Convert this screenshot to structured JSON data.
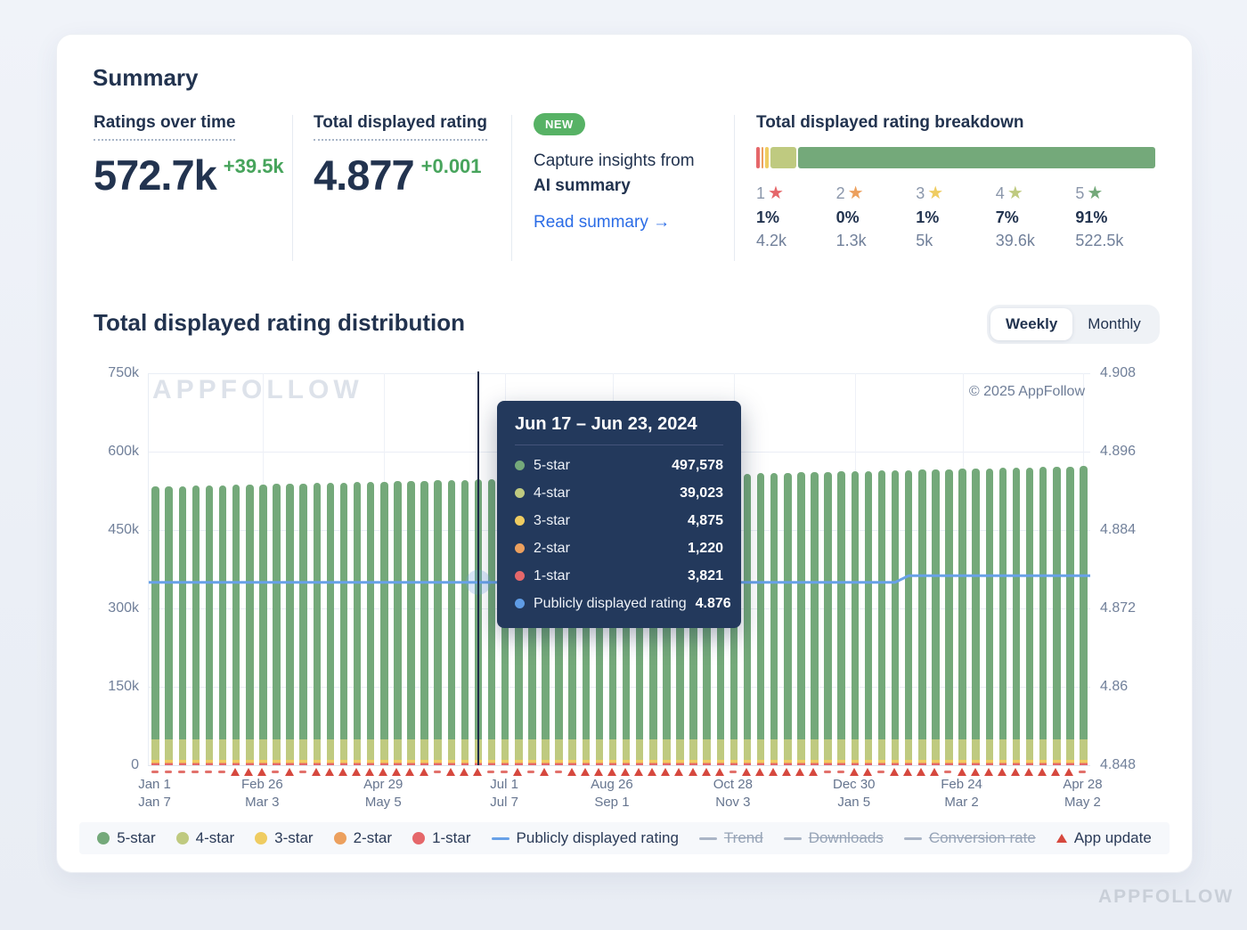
{
  "palette": {
    "five": "#74a97a",
    "four": "#bfca80",
    "three": "#efcc61",
    "two": "#eca05e",
    "one": "#e5676a",
    "line_blue": "#68a1e8",
    "update_red": "#d6483e",
    "disabled_gray": "#9aa7b9",
    "accent_green": "#47a45c",
    "badge_green": "#57b265",
    "link_blue": "#2b6ce6",
    "tooltip_bg": "#23395c",
    "navy": "#22334f"
  },
  "summary": {
    "title": "Summary",
    "stats": [
      {
        "label": "Ratings over time",
        "value": "572.7k",
        "delta": "+39.5k"
      },
      {
        "label": "Total displayed rating",
        "value": "4.877",
        "delta": "+0.001"
      }
    ],
    "ai": {
      "badge": "NEW",
      "line1": "Capture insights from",
      "line2": "AI summary",
      "link": "Read summary →"
    }
  },
  "breakdown": {
    "title": "Total displayed rating breakdown",
    "items": [
      {
        "num": "1",
        "star": "★",
        "color": "#e5676a",
        "pct": "1%",
        "count": "4.2k",
        "bar_pct": 0.9
      },
      {
        "num": "2",
        "star": "★",
        "color": "#eca05e",
        "pct": "0%",
        "count": "1.3k",
        "bar_pct": 0.5
      },
      {
        "num": "3",
        "star": "★",
        "color": "#efcc61",
        "pct": "1%",
        "count": "5k",
        "bar_pct": 0.9
      },
      {
        "num": "4",
        "star": "★",
        "color": "#bfca80",
        "pct": "7%",
        "count": "39.6k",
        "bar_pct": 6.4
      },
      {
        "num": "5",
        "star": "★",
        "color": "#74a97a",
        "pct": "91%",
        "count": "522.5k",
        "bar_pct": 91.3
      }
    ]
  },
  "distribution": {
    "title": "Total displayed rating distribution",
    "toggle": {
      "weekly": "Weekly",
      "monthly": "Monthly",
      "active": "Weekly"
    }
  },
  "chart_data": {
    "type": "bar",
    "title": "Total displayed rating distribution",
    "watermark": "APPFOLLOW",
    "copyright": "© 2025 AppFollow",
    "left_axis": {
      "labels": [
        "750k",
        "600k",
        "450k",
        "300k",
        "150k",
        "0"
      ],
      "max_k": 750
    },
    "right_axis": {
      "labels": [
        "4.908",
        "4.896",
        "4.884",
        "4.872",
        "4.86",
        "4.848"
      ],
      "max": 4.908,
      "min": 4.848
    },
    "x_ticks": [
      {
        "week": 0,
        "top": "Jan 1",
        "bottom": "Jan 7"
      },
      {
        "week": 8,
        "top": "Feb 26",
        "bottom": "Mar 3"
      },
      {
        "week": 17,
        "top": "Apr 29",
        "bottom": "May 5"
      },
      {
        "week": 26,
        "top": "Jul 1",
        "bottom": "Jul 7"
      },
      {
        "week": 34,
        "top": "Aug 26",
        "bottom": "Sep 1"
      },
      {
        "week": 43,
        "top": "Oct 28",
        "bottom": "Nov 3"
      },
      {
        "week": 52,
        "top": "Dec 30",
        "bottom": "Jan 5"
      },
      {
        "week": 60,
        "top": "Feb 24",
        "bottom": "Mar 2"
      },
      {
        "week": 69,
        "top": "Apr 28",
        "bottom": "May 2"
      }
    ],
    "totals_k": [
      533.2,
      533.8,
      534.3,
      534.9,
      535.5,
      536.0,
      536.6,
      537.2,
      537.7,
      538.3,
      538.9,
      539.4,
      540.0,
      540.6,
      541.1,
      541.7,
      542.3,
      542.8,
      543.4,
      544.0,
      544.5,
      545.1,
      545.7,
      546.2,
      546.5,
      547.4,
      547.9,
      548.5,
      549.1,
      549.6,
      550.2,
      550.8,
      551.3,
      551.9,
      552.5,
      553.0,
      553.6,
      554.2,
      554.7,
      555.3,
      555.9,
      556.4,
      557.0,
      557.6,
      558.1,
      558.7,
      559.3,
      559.8,
      560.4,
      561.0,
      561.5,
      562.1,
      562.7,
      563.2,
      563.8,
      564.4,
      564.9,
      565.5,
      566.1,
      566.6,
      567.2,
      567.8,
      568.3,
      568.9,
      569.5,
      570.0,
      570.6,
      571.2,
      571.7,
      572.7
    ],
    "fixed_segments_k": {
      "one_star": 3.8,
      "two_star": 1.2,
      "three_star": 4.9,
      "four_star": 39.0
    },
    "markers": "ddddddtttdtdtttttttttdtttddtdtdttttttttttttdttttttddttdttttdtttttttttd",
    "line": {
      "name": "Publicly displayed rating",
      "before": 4.876,
      "after": 4.877,
      "step_week": 56
    },
    "highlight_week": 24,
    "tooltip": {
      "title": "Jun 17 – Jun 23, 2024",
      "rows": [
        {
          "label": "5-star",
          "value": "497,578",
          "color": "#74a97a"
        },
        {
          "label": "4-star",
          "value": "39,023",
          "color": "#bfca80"
        },
        {
          "label": "3-star",
          "value": "4,875",
          "color": "#efcc61"
        },
        {
          "label": "2-star",
          "value": "1,220",
          "color": "#eca05e"
        },
        {
          "label": "1-star",
          "value": "3,821",
          "color": "#e5676a"
        },
        {
          "label": "Publicly displayed rating",
          "value": "4.876",
          "color": "#5f9ce5"
        }
      ]
    },
    "legend": [
      {
        "type": "dot",
        "color": "#74a97a",
        "label": "5-star",
        "disabled": false
      },
      {
        "type": "dot",
        "color": "#bfca80",
        "label": "4-star",
        "disabled": false
      },
      {
        "type": "dot",
        "color": "#efcc61",
        "label": "3-star",
        "disabled": false
      },
      {
        "type": "dot",
        "color": "#eca05e",
        "label": "2-star",
        "disabled": false
      },
      {
        "type": "dot",
        "color": "#e5676a",
        "label": "1-star",
        "disabled": false
      },
      {
        "type": "line",
        "color": "#68a1e8",
        "label": "Publicly displayed rating",
        "disabled": false
      },
      {
        "type": "line",
        "color": "#aab5c6",
        "label": "Trend",
        "disabled": true
      },
      {
        "type": "line",
        "color": "#aab5c6",
        "label": "Downloads",
        "disabled": true
      },
      {
        "type": "line",
        "color": "#aab5c6",
        "label": "Conversion rate",
        "disabled": true
      },
      {
        "type": "triangle",
        "color": "#d6483e",
        "label": "App update",
        "disabled": false
      }
    ]
  },
  "footer_watermark": "APPFOLLOW"
}
